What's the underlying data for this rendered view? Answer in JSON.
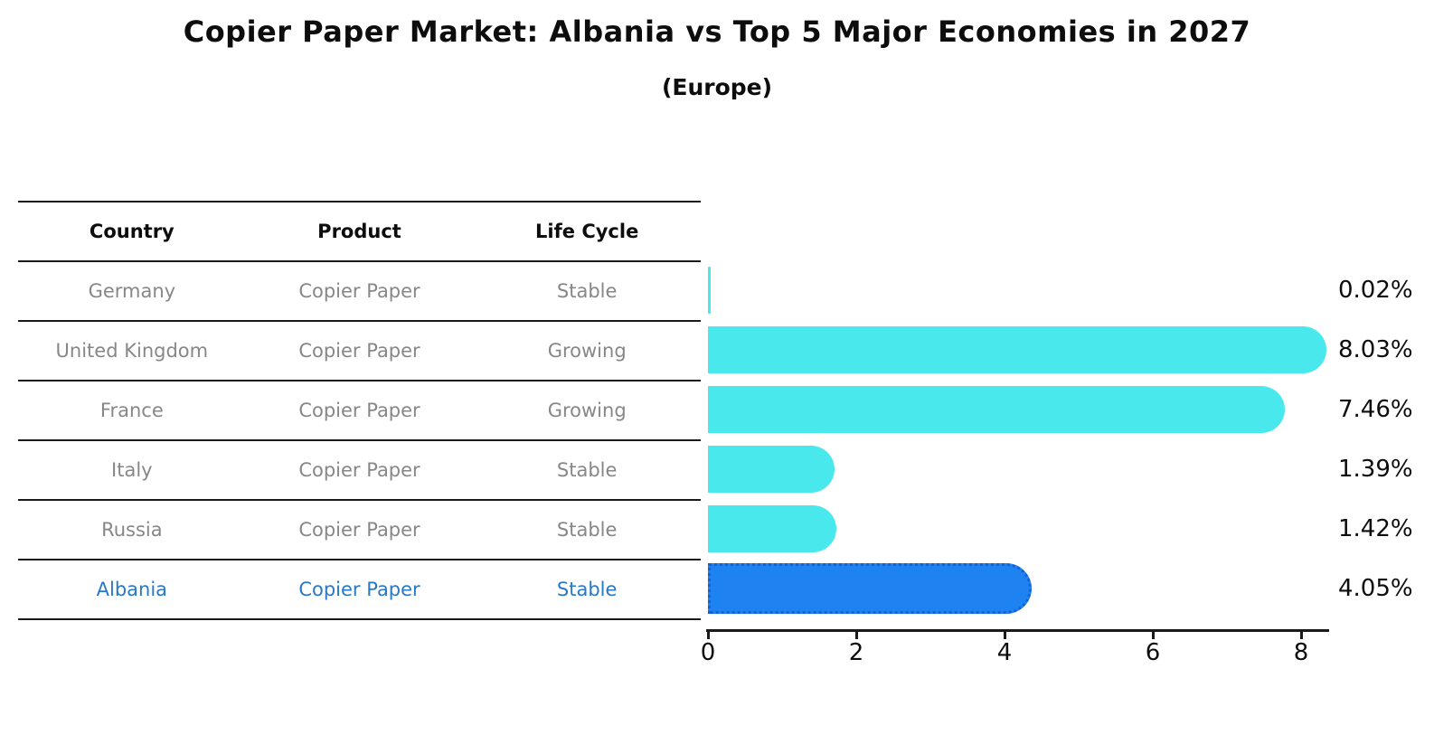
{
  "header": {
    "title": "Copier Paper Market: Albania vs Top 5 Major Economies in 2027",
    "subtitle": "(Europe)"
  },
  "table": {
    "headers": [
      "Country",
      "Product",
      "Life Cycle"
    ],
    "rows": [
      {
        "country": "Germany",
        "product": "Copier Paper",
        "life_cycle": "Stable",
        "highlight": false
      },
      {
        "country": "United Kingdom",
        "product": "Copier Paper",
        "life_cycle": "Growing",
        "highlight": false
      },
      {
        "country": "France",
        "product": "Copier Paper",
        "life_cycle": "Growing",
        "highlight": false
      },
      {
        "country": "Italy",
        "product": "Copier Paper",
        "life_cycle": "Stable",
        "highlight": false
      },
      {
        "country": "Russia",
        "product": "Copier Paper",
        "life_cycle": "Stable",
        "highlight": false
      },
      {
        "country": "Albania",
        "product": "Copier Paper",
        "life_cycle": "Stable",
        "highlight": true
      }
    ]
  },
  "chart_data": {
    "type": "bar",
    "orientation": "horizontal",
    "title": "Copier Paper Market: Albania vs Top 5 Major Economies in 2027",
    "subtitle": "(Europe)",
    "categories": [
      "Germany",
      "United Kingdom",
      "France",
      "Italy",
      "Russia",
      "Albania"
    ],
    "values": [
      0.02,
      8.03,
      7.46,
      1.39,
      1.42,
      4.05
    ],
    "value_labels": [
      "0.02%",
      "8.03%",
      "7.46%",
      "1.39%",
      "1.42%",
      "4.05%"
    ],
    "xlabel": "",
    "ylabel": "",
    "xlim": [
      0,
      8.4
    ],
    "xticks": [
      0,
      2,
      4,
      6,
      8
    ],
    "grid": false,
    "legend_position": "none",
    "colors": {
      "default_bar": "#48E8EC",
      "highlight_bar": "#1E82F0",
      "highlight_border": "#1261D8",
      "highlight_text": "#2878C8",
      "muted_text": "#878787",
      "line": "#1A1A1A"
    }
  }
}
